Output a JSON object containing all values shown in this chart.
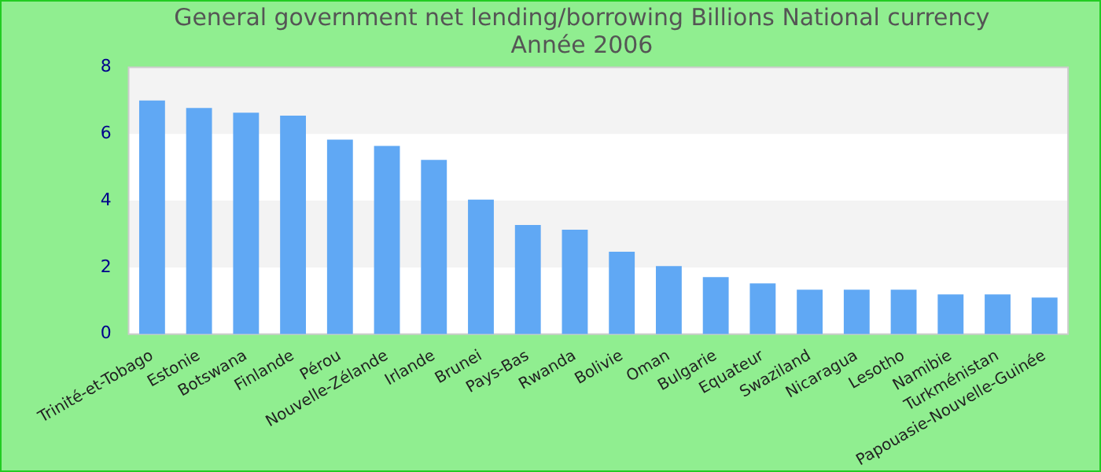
{
  "chart_data": {
    "type": "bar",
    "title": "General government net lending/borrowing Billions National currency",
    "subtitle": "Année 2006",
    "categories": [
      "Trinité-et-Tobago",
      "Estonie",
      "Botswana",
      "Finlande",
      "Pérou",
      "Nouvelle-Zélande",
      "Irlande",
      "Brunei",
      "Pays-Bas",
      "Rwanda",
      "Bolivie",
      "Oman",
      "Bulgarie",
      "Equateur",
      "Swaziland",
      "Nicaragua",
      "Lesotho",
      "Namibie",
      "Turkménistan",
      "Papouasie-Nouvelle-Guinée"
    ],
    "values": [
      7.0,
      6.78,
      6.64,
      6.55,
      5.83,
      5.64,
      5.22,
      4.03,
      3.27,
      3.13,
      2.47,
      2.04,
      1.71,
      1.52,
      1.33,
      1.33,
      1.33,
      1.19,
      1.19,
      1.1
    ],
    "color": "#60a8f4",
    "ylim": [
      0,
      8
    ],
    "yticks": [
      0,
      2,
      4,
      6,
      8
    ],
    "legend": false
  }
}
